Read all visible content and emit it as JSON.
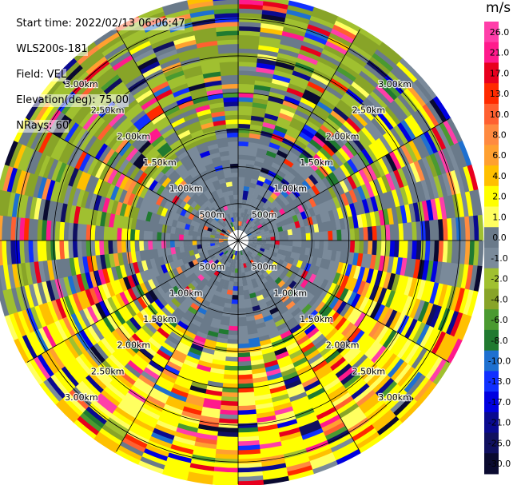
{
  "info": {
    "start_time": "Start time: 2022/02/13 06:06:47",
    "instrument": "WLS200s-181",
    "field": "Field: VEL",
    "elevation": "Elevation(deg): 75.00",
    "nrays": "NRays: 60"
  },
  "colorbar": {
    "unit": "m/s",
    "ticks": [
      "26.0",
      "21.0",
      "17.0",
      "13.0",
      "10.0",
      "8.0",
      "6.0",
      "4.0",
      "2.0",
      "1.0",
      "0.0",
      "-1.0",
      "-2.0",
      "-4.0",
      "-6.0",
      "-8.0",
      "-10.0",
      "-13.0",
      "-17.0",
      "-21.0",
      "-26.0",
      "-30.0"
    ],
    "colors": [
      "#ff3ea9",
      "#ff1a8c",
      "#e8001e",
      "#ff2a00",
      "#ff6030",
      "#ff8a40",
      "#ffa030",
      "#ffc000",
      "#ffff00",
      "#ffff60",
      "#6a7a8a",
      "#7a8a9a",
      "#a0c030",
      "#88a428",
      "#4a9a30",
      "#207a30",
      "#1e70d0",
      "#1030ff",
      "#0000e0",
      "#0a0a90",
      "#101060",
      "#0a0a30"
    ]
  },
  "chart_data": {
    "type": "heatmap",
    "projection": "polar-ppi",
    "field": "VEL",
    "unit": "m/s",
    "nrays": 60,
    "elevation_deg": 75.0,
    "range_km_max": 3.3,
    "range_rings": [
      {
        "range_km": 0.5,
        "label": "500m"
      },
      {
        "range_km": 1.0,
        "label": "1.00km"
      },
      {
        "range_km": 1.5,
        "label": "1.50km"
      },
      {
        "range_km": 2.0,
        "label": "2.00km"
      },
      {
        "range_km": 2.5,
        "label": "2.50km"
      },
      {
        "range_km": 3.0,
        "label": "3.00km"
      }
    ],
    "spokes_deg": [
      0,
      30,
      60,
      90,
      120,
      150,
      180,
      210,
      240,
      270,
      300,
      330
    ]
  }
}
